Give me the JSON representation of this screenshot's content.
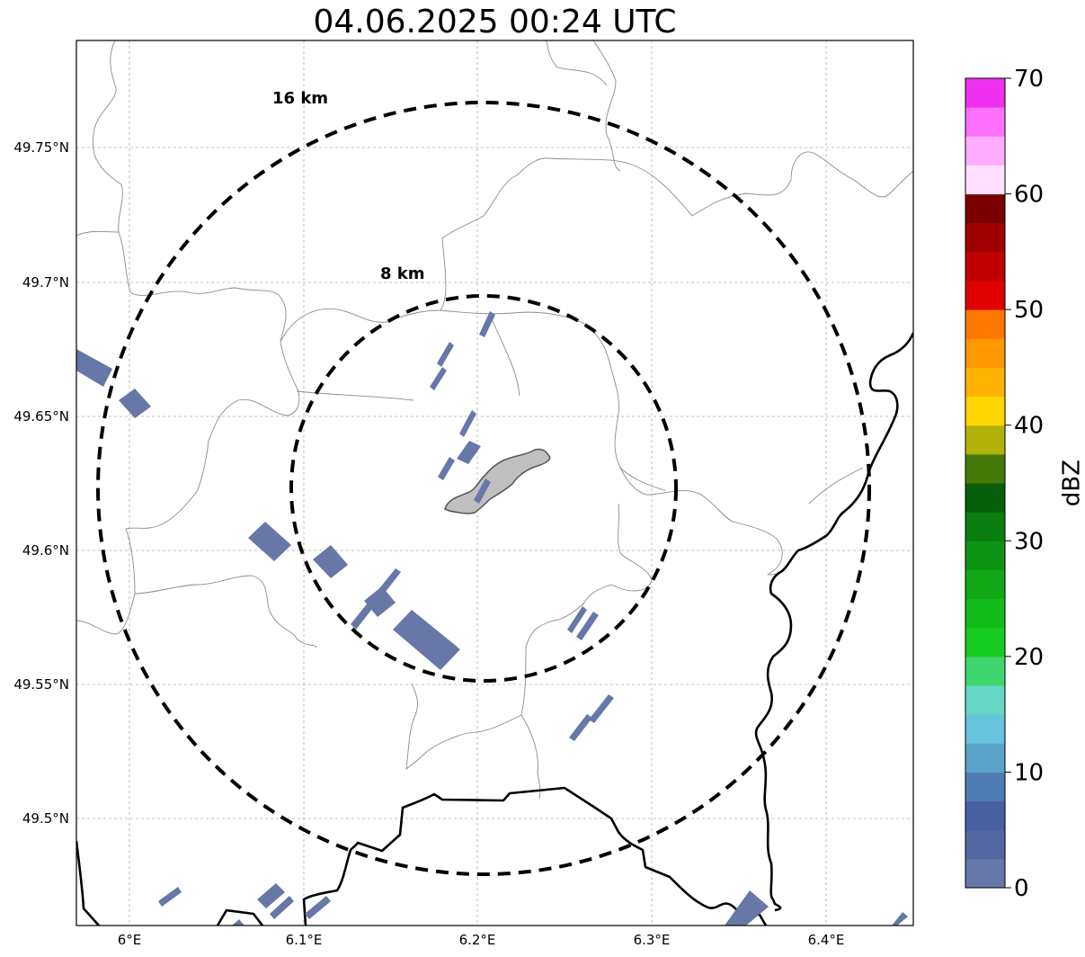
{
  "title": "04.06.2025 00:24 UTC",
  "map": {
    "lat_labels": [
      "49.75°N",
      "49.7°N",
      "49.65°N",
      "49.6°N",
      "49.55°N",
      "49.5°N"
    ],
    "lon_labels": [
      "6°E",
      "6.1°E",
      "6.2°E",
      "6.3°E",
      "6.4°E"
    ],
    "range_rings": [
      {
        "label": "8 km",
        "radius_km": 8
      },
      {
        "label": "16 km",
        "radius_km": 16
      }
    ],
    "center": {
      "lat": 49.623,
      "lon": 6.202
    },
    "gridlines": true,
    "colors": {
      "ring": "#000000",
      "grid": "#b0b0b0",
      "admin_line": "#8c8c8c",
      "border": "#000000",
      "city_fill": "#c0c0c0",
      "echo": "#6677a8"
    }
  },
  "colorbar": {
    "label": "dBZ",
    "ticks": [
      "0",
      "10",
      "20",
      "30",
      "40",
      "50",
      "60",
      "70"
    ],
    "min": 0,
    "max": 70,
    "step": 2.5,
    "colors": [
      "#6677a8",
      "#5567a2",
      "#4660a2",
      "#4f7cb2",
      "#5aa2c8",
      "#66c4dc",
      "#64d8c4",
      "#3fd670",
      "#16cc1e",
      "#12bc18",
      "#10a816",
      "#0e9414",
      "#0a7e10",
      "#065e0a",
      "#457a08",
      "#b0b20a",
      "#ffd600",
      "#ffb300",
      "#ff9800",
      "#ff7800",
      "#e00000",
      "#c00000",
      "#a00000",
      "#7a0000",
      "#ffe0ff",
      "#ffaeff",
      "#ff70ff",
      "#f030f0"
    ]
  }
}
